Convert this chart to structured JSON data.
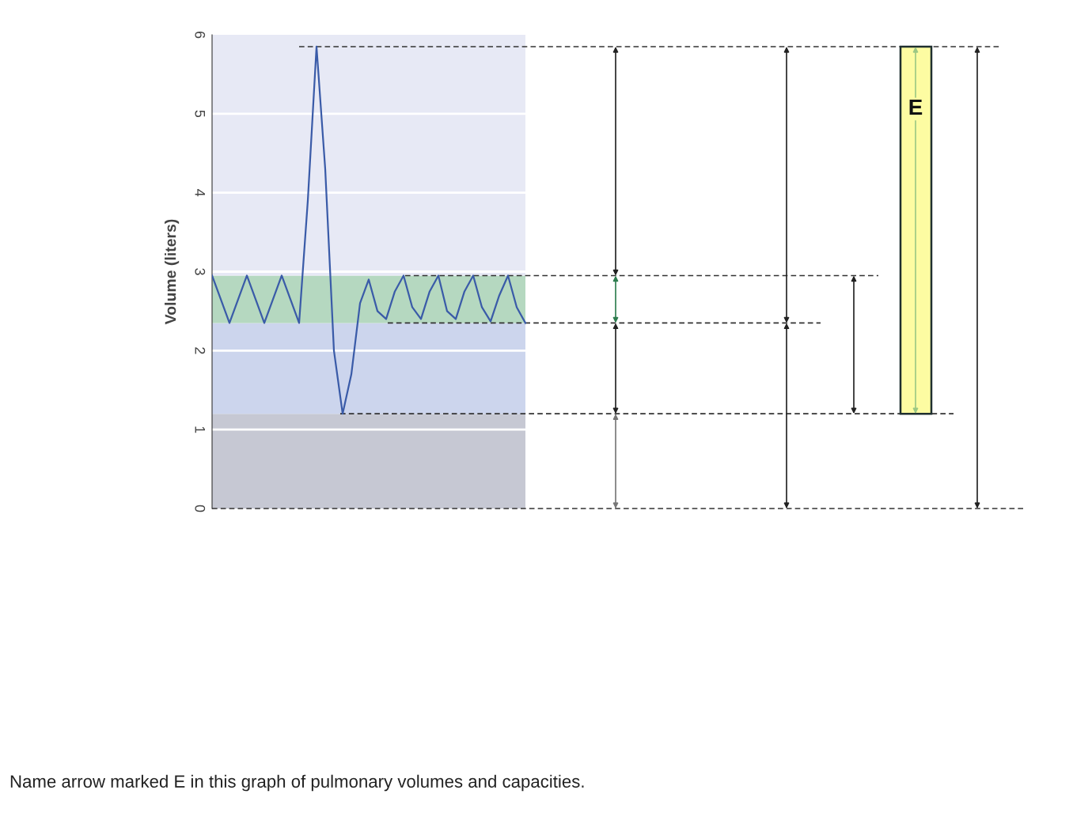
{
  "chart_data": {
    "type": "line",
    "ylabel": "Volume (liters)",
    "categories": [
      null,
      null,
      null,
      null,
      null,
      null,
      null,
      null,
      null,
      null,
      null,
      null,
      null,
      null,
      null,
      null,
      null,
      null,
      null,
      null,
      null,
      null,
      null,
      null,
      null,
      null,
      null,
      null,
      null,
      null,
      null,
      null,
      null,
      null,
      null,
      null,
      null
    ],
    "series": [
      {
        "color": "#3a5ba8",
        "values": [
          2.95,
          2.65,
          2.35,
          2.65,
          2.95,
          2.65,
          2.35,
          2.65,
          2.95,
          2.65,
          2.35,
          3.9,
          5.85,
          4.3,
          2.0,
          1.2,
          1.7,
          2.6,
          2.9,
          2.5,
          2.4,
          2.75,
          2.95,
          2.55,
          2.4,
          2.75,
          2.95,
          2.5,
          2.4,
          2.75,
          2.95,
          2.55,
          2.37,
          2.7,
          2.95,
          2.55,
          2.35
        ]
      }
    ],
    "ylim": [
      0,
      6
    ],
    "yticks": [
      0,
      1,
      2,
      3,
      4,
      5,
      6
    ],
    "grid": "y",
    "tick_labels": "y",
    "line_style": "solid",
    "bands": [
      {
        "axis": "y",
        "from": 0,
        "to": 1.2,
        "color": "#c6c8d3"
      },
      {
        "axis": "y",
        "from": 1.2,
        "to": 2.35,
        "color": "#ccd5ed"
      },
      {
        "axis": "y",
        "from": 2.35,
        "to": 2.95,
        "color": "#b5d8c0"
      },
      {
        "axis": "y",
        "from": 2.95,
        "to": 6,
        "color": "#e7e9f5"
      }
    ],
    "ref_lines": [
      {
        "axis": "y",
        "value": 5.85,
        "line_style": "dashed",
        "color": "#333333"
      },
      {
        "axis": "y",
        "value": 2.95,
        "line_style": "dashed",
        "color": "#333333"
      },
      {
        "axis": "y",
        "value": 2.35,
        "line_style": "dashed",
        "color": "#333333"
      },
      {
        "axis": "y",
        "value": 1.2,
        "line_style": "dashed",
        "color": "#333333"
      },
      {
        "axis": "y",
        "value": 0,
        "line_style": "dashed",
        "color": "#333333"
      }
    ],
    "annotations": [
      "E",
      "Name arrow marked E in this graph of pulmonary volumes and capacities."
    ]
  }
}
